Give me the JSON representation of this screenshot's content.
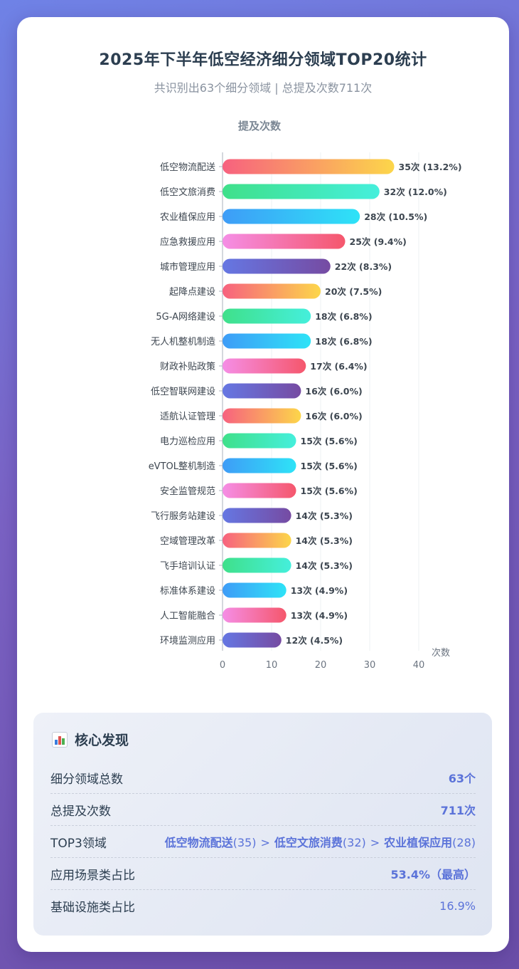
{
  "header": {
    "title": "2025年下半年低空经济细分领域TOP20统计",
    "subtitle": "共识别出63个细分领域 | 总提及次数711次"
  },
  "colors": {
    "gradients": [
      [
        "#f7617f",
        "#fcd64a"
      ],
      [
        "#3fe08a",
        "#45efdc"
      ],
      [
        "#3e9cf7",
        "#2ee3f7"
      ],
      [
        "#f58ee6",
        "#f5576c"
      ],
      [
        "#6577e3",
        "#764ba2"
      ]
    ],
    "accent": "#5b73d9"
  },
  "chart_data": {
    "type": "bar",
    "orientation": "horizontal",
    "title": "提及次数",
    "xlabel": "次数",
    "ylabel": "",
    "xlim": [
      0,
      40
    ],
    "xticks": [
      0,
      10,
      20,
      30,
      40
    ],
    "grid": true,
    "categories": [
      "低空物流配送",
      "低空文旅消费",
      "农业植保应用",
      "应急救援应用",
      "城市管理应用",
      "起降点建设",
      "5G-A网络建设",
      "无人机整机制造",
      "财政补贴政策",
      "低空智联网建设",
      "适航认证管理",
      "电力巡检应用",
      "eVTOL整机制造",
      "安全监管规范",
      "飞行服务站建设",
      "空域管理改革",
      "飞手培训认证",
      "标准体系建设",
      "人工智能融合",
      "环境监测应用"
    ],
    "values": [
      35,
      32,
      28,
      25,
      22,
      20,
      18,
      18,
      17,
      16,
      16,
      15,
      15,
      15,
      14,
      14,
      14,
      13,
      13,
      12
    ],
    "data_labels": [
      "35次 (13.2%)",
      "32次 (12.0%)",
      "28次 (10.5%)",
      "25次 (9.4%)",
      "22次 (8.3%)",
      "20次 (7.5%)",
      "18次 (6.8%)",
      "18次 (6.8%)",
      "17次 (6.4%)",
      "16次 (6.0%)",
      "16次 (6.0%)",
      "15次 (5.6%)",
      "15次 (5.6%)",
      "15次 (5.6%)",
      "14次 (5.3%)",
      "14次 (5.3%)",
      "14次 (5.3%)",
      "13次 (4.9%)",
      "13次 (4.9%)",
      "12次 (4.5%)"
    ]
  },
  "findings": {
    "title": "核心发现",
    "rows": [
      {
        "label": "细分领域总数",
        "value": "63个"
      },
      {
        "label": "总提及次数",
        "value": "711次"
      },
      {
        "label": "TOP3领域",
        "items": [
          {
            "name": "低空物流配送",
            "count": "(35)"
          },
          {
            "name": "低空文旅消费",
            "count": "(32)"
          },
          {
            "name": "农业植保应用",
            "count": "(28)"
          }
        ],
        "separator": ">"
      },
      {
        "label": "应用场景类占比",
        "value": "53.4%（最高）"
      },
      {
        "label": "基础设施类占比",
        "value": "16.9%"
      }
    ]
  }
}
